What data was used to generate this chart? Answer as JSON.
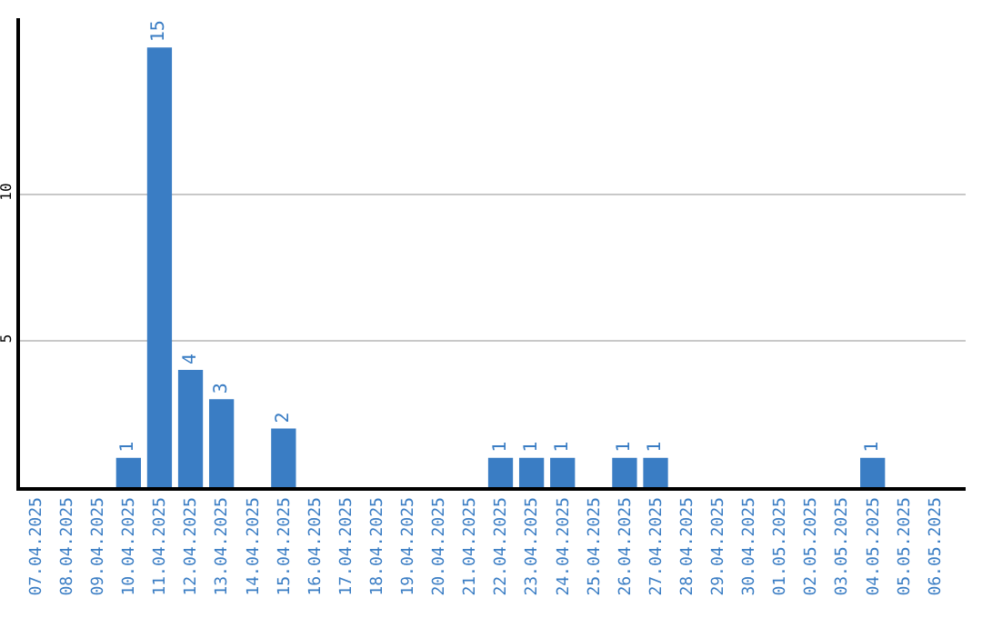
{
  "chart_data": {
    "type": "bar",
    "categories": [
      "07.04.2025",
      "08.04.2025",
      "09.04.2025",
      "10.04.2025",
      "11.04.2025",
      "12.04.2025",
      "13.04.2025",
      "14.04.2025",
      "15.04.2025",
      "16.04.2025",
      "17.04.2025",
      "18.04.2025",
      "19.04.2025",
      "20.04.2025",
      "21.04.2025",
      "22.04.2025",
      "23.04.2025",
      "24.04.2025",
      "25.04.2025",
      "26.04.2025",
      "27.04.2025",
      "28.04.2025",
      "29.04.2025",
      "30.04.2025",
      "01.05.2025",
      "02.05.2025",
      "03.05.2025",
      "04.05.2025",
      "05.05.2025",
      "06.05.2025"
    ],
    "values": [
      0,
      0,
      0,
      1,
      15,
      4,
      3,
      0,
      2,
      0,
      0,
      0,
      0,
      0,
      0,
      1,
      1,
      1,
      0,
      1,
      1,
      0,
      0,
      0,
      0,
      0,
      0,
      1,
      0,
      0
    ],
    "value_labels": [
      null,
      null,
      null,
      "1",
      "15",
      "4",
      "3",
      null,
      "2",
      null,
      null,
      null,
      null,
      null,
      null,
      "1",
      "1",
      "1",
      null,
      "1",
      "1",
      null,
      null,
      null,
      null,
      null,
      null,
      "1",
      null,
      null
    ],
    "color": "#3a7dc4",
    "ylim": [
      0,
      16
    ],
    "yticks": [
      5,
      10
    ],
    "grid": "y"
  }
}
